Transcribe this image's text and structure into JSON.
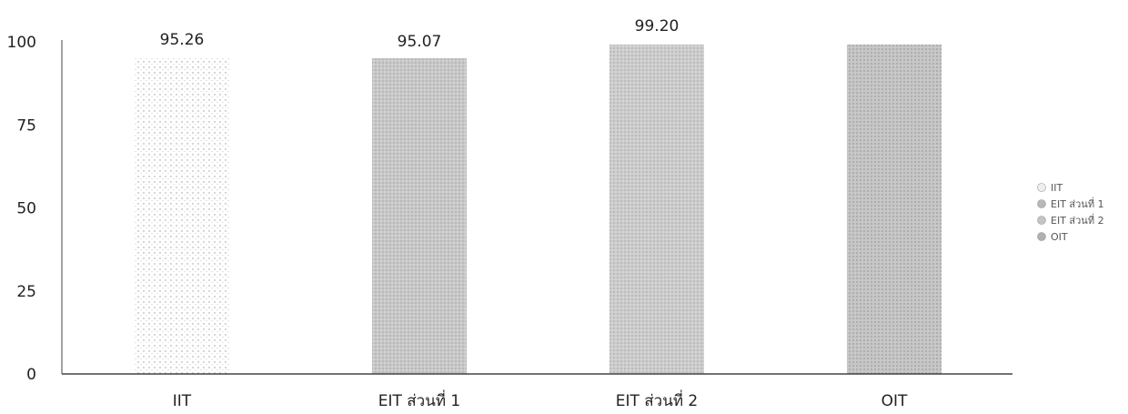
{
  "chart_data": {
    "type": "bar",
    "categories": [
      "IIT",
      "EIT ส่วนที่ 1",
      "EIT ส่วนที่ 2",
      "OIT"
    ],
    "values": [
      95.26,
      95.07,
      99.2,
      99.2
    ],
    "data_labels": [
      "95.26",
      "95.07",
      "99.20",
      ""
    ],
    "yticks": [
      "0",
      "25",
      "50",
      "75",
      "100"
    ],
    "ylim": [
      0,
      100
    ],
    "grid": false,
    "legend": {
      "position": "right",
      "entries": [
        "IIT",
        "EIT ส่วนที่ 1",
        "EIT ส่วนที่ 2",
        "OIT"
      ]
    },
    "colors": {
      "IIT": "#f0f0f0",
      "EIT ส่วนที่ 1": "#cfcfcf",
      "EIT ส่วนที่ 2": "#d2d2d2",
      "OIT": "#cccccc"
    },
    "title": "",
    "xlabel": "",
    "ylabel": ""
  }
}
